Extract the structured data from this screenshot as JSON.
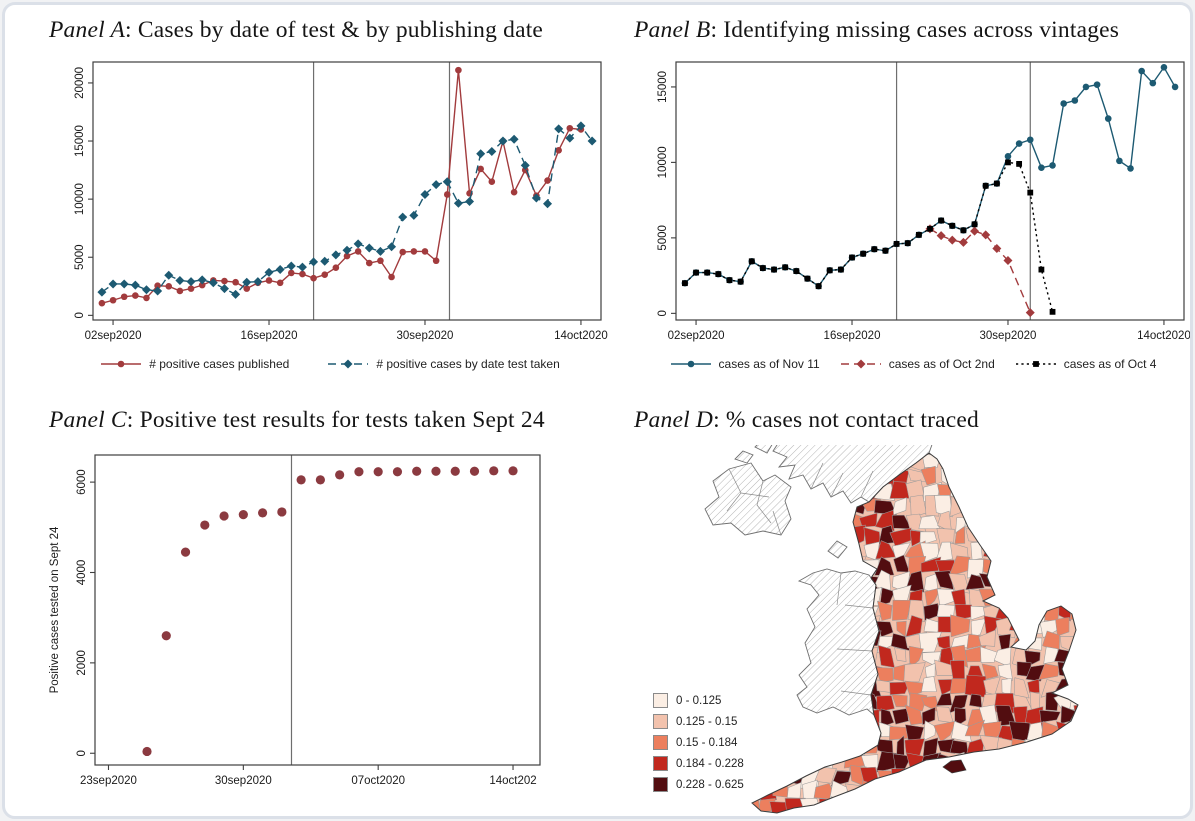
{
  "card": {
    "background": "#ffffff",
    "border_color": "#dbe0e8"
  },
  "chart_data": [
    {
      "panel": "A",
      "type": "line",
      "title_prefix": "Panel A",
      "title_rest": ": Cases by date of test & by publishing date",
      "x_start_date": "01sep2020",
      "x_tick_labels": [
        "02sep2020",
        "16sep2020",
        "30sep2020",
        "14oct2020"
      ],
      "x_tick_days": [
        1,
        15,
        29,
        43
      ],
      "x_range_days": [
        -0.8,
        44.8
      ],
      "ylim": [
        -400,
        21800
      ],
      "y_ticks": [
        0,
        5000,
        10000,
        15000,
        20000
      ],
      "vlines_days": [
        19,
        31.2
      ],
      "series": [
        {
          "name": "# positive cases published",
          "color": "#a23b3d",
          "dash": "solid",
          "marker": "circle",
          "values": [
            1050,
            1300,
            1600,
            1700,
            1500,
            2550,
            2500,
            2100,
            2300,
            2600,
            3000,
            2950,
            2850,
            2300,
            2800,
            3000,
            2800,
            3650,
            3550,
            3200,
            3500,
            4100,
            5100,
            5500,
            4500,
            4700,
            3300,
            5450,
            5500,
            5500,
            4700,
            10400,
            21100,
            10500,
            12600,
            11500,
            15000,
            10600,
            12500,
            10300,
            11600,
            14200,
            16100,
            16000,
            null
          ]
        },
        {
          "name": "# positive cases by date test taken",
          "color": "#1d5a72",
          "dash": "dashed",
          "marker": "diamond",
          "values": [
            2000,
            2700,
            2700,
            2600,
            2200,
            2100,
            3450,
            3000,
            2900,
            3050,
            2800,
            2300,
            1800,
            2850,
            2900,
            3700,
            3950,
            4250,
            4150,
            4600,
            4650,
            5200,
            5600,
            6150,
            5800,
            5500,
            5900,
            8450,
            8600,
            10400,
            11250,
            11500,
            9650,
            9800,
            13900,
            14100,
            15000,
            15150,
            12900,
            10100,
            9600,
            16050,
            15250,
            16300,
            15000
          ]
        }
      ]
    },
    {
      "panel": "B",
      "type": "line",
      "title_prefix": "Panel B",
      "title_rest": ": Identifying missing cases across vintages",
      "x_start_date": "01sep2020",
      "x_tick_labels": [
        "02sep2020",
        "16sep2020",
        "30sep2020",
        "14oct2020"
      ],
      "x_tick_days": [
        1,
        15,
        29,
        43
      ],
      "x_range_days": [
        -0.8,
        44.8
      ],
      "ylim": [
        -440,
        16650
      ],
      "y_ticks": [
        0,
        5000,
        10000,
        15000
      ],
      "vlines_days": [
        19,
        31
      ],
      "series": [
        {
          "name": "cases as of Nov 11",
          "color": "#1d5a72",
          "dash": "solid",
          "marker": "circle",
          "values": [
            2000,
            2700,
            2700,
            2600,
            2200,
            2100,
            3450,
            3000,
            2900,
            3050,
            2800,
            2300,
            1800,
            2850,
            2900,
            3700,
            3950,
            4250,
            4150,
            4600,
            4650,
            5200,
            5600,
            6150,
            5800,
            5500,
            5900,
            8450,
            8600,
            10400,
            11250,
            11500,
            9650,
            9800,
            13900,
            14100,
            15000,
            15150,
            12900,
            10100,
            9600,
            16050,
            15250,
            16300,
            15000
          ]
        },
        {
          "name": "cases as of Oct 2nd",
          "color": "#a23b3d",
          "dash": "dashed",
          "marker": "diamond",
          "values": [
            null,
            null,
            null,
            null,
            null,
            null,
            null,
            null,
            null,
            null,
            null,
            null,
            null,
            null,
            null,
            null,
            null,
            null,
            null,
            null,
            null,
            null,
            5600,
            5150,
            4850,
            4700,
            5450,
            5200,
            4300,
            3500,
            null,
            50
          ]
        },
        {
          "name": "cases as of Oct 4",
          "color": "#000000",
          "dash": "dotted",
          "marker": "square",
          "values": [
            2000,
            2700,
            2700,
            2600,
            2200,
            2100,
            3450,
            3000,
            2900,
            3050,
            2800,
            2300,
            1800,
            2850,
            2900,
            3700,
            3950,
            4250,
            4150,
            4600,
            4650,
            5200,
            5600,
            6150,
            5800,
            5500,
            5900,
            8450,
            8600,
            10000,
            9900,
            8000,
            2900,
            100
          ]
        }
      ]
    },
    {
      "panel": "C",
      "type": "scatter",
      "title_prefix": "Panel C",
      "title_rest": ": Positive test results for tests taken Sept 24",
      "ylabel": "Positive cases tested on Sept 24",
      "x_start_date": "23sep2020",
      "x_tick_labels": [
        "23sep2020",
        "30sep2020",
        "07oct2020",
        "14oct202"
      ],
      "x_tick_days": [
        0,
        7,
        14,
        21
      ],
      "x_range_days": [
        -0.7,
        22.4
      ],
      "ylim": [
        -260,
        6600
      ],
      "y_ticks": [
        0,
        2000,
        4000,
        6000
      ],
      "vlines_days": [
        9.5
      ],
      "series": [
        {
          "name": "positive cases tested on Sept 24",
          "color": "#8b3a40",
          "dash": "none",
          "marker": "circle",
          "x_days": [
            2,
            3,
            4,
            5,
            6,
            7,
            8,
            9,
            10,
            11,
            12,
            13,
            14,
            15,
            16,
            17,
            18,
            19,
            20,
            21
          ],
          "values": [
            40,
            2600,
            4450,
            5050,
            5250,
            5280,
            5320,
            5340,
            6050,
            6050,
            6160,
            6230,
            6230,
            6230,
            6240,
            6240,
            6240,
            6240,
            6250,
            6250
          ]
        }
      ]
    },
    {
      "panel": "D",
      "type": "choropleth_map",
      "title_prefix": "Panel D",
      "title_rest": ": % cases not contact traced",
      "legend": [
        {
          "label": "0 - 0.125",
          "color": "#fbeee4"
        },
        {
          "label": "0.125 - 0.15",
          "color": "#f2c2ad"
        },
        {
          "label": "0.15 - 0.184",
          "color": "#ec7f5e"
        },
        {
          "label": "0.184 - 0.228",
          "color": "#c1281e"
        },
        {
          "label": "0.228 - 0.625",
          "color": "#520d10"
        }
      ]
    }
  ]
}
